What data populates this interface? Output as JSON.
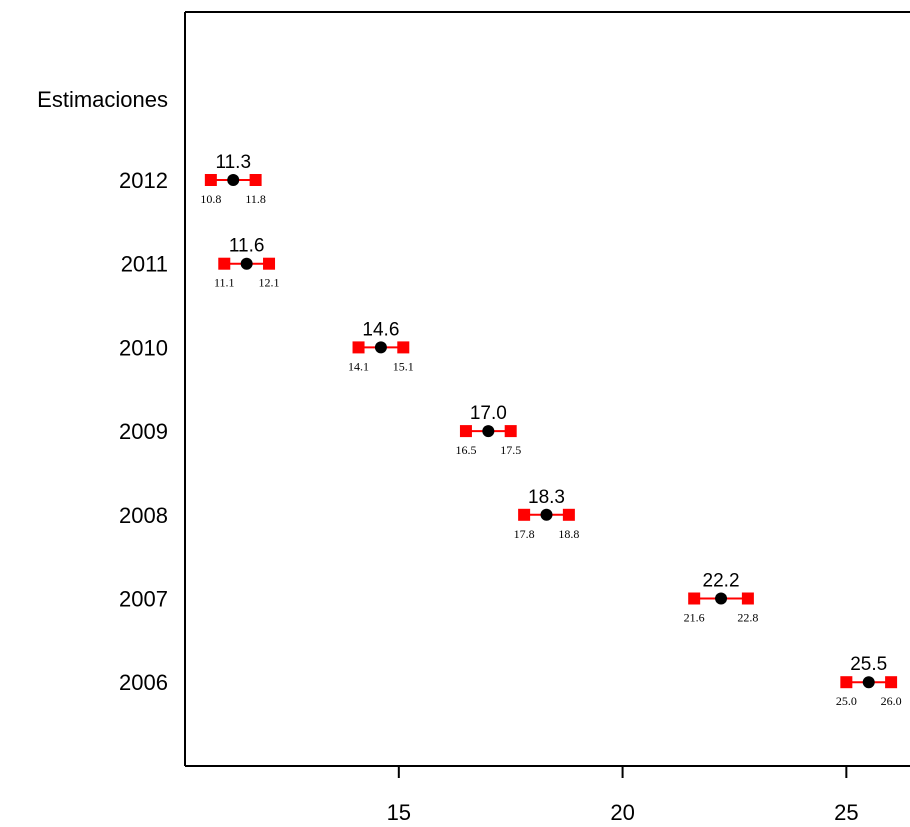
{
  "chart_data": {
    "type": "scatter",
    "title": "",
    "header_label": "Estimaciones",
    "categories": [
      "2012",
      "2011",
      "2010",
      "2009",
      "2008",
      "2007",
      "2006"
    ],
    "x_ticks": [
      15,
      20,
      25
    ],
    "xlim": [
      10.2,
      26.4
    ],
    "series": [
      {
        "estimates": [
          11.3,
          11.6,
          14.6,
          17.0,
          18.3,
          22.2,
          25.5
        ],
        "lower": [
          10.8,
          11.1,
          14.1,
          16.5,
          17.8,
          21.6,
          25.0
        ],
        "upper": [
          11.8,
          12.1,
          15.1,
          17.5,
          18.8,
          22.8,
          26.0
        ]
      }
    ],
    "colors": {
      "point": "#000000",
      "interval": "#ff0000",
      "axis": "#000000"
    },
    "grid": false
  }
}
